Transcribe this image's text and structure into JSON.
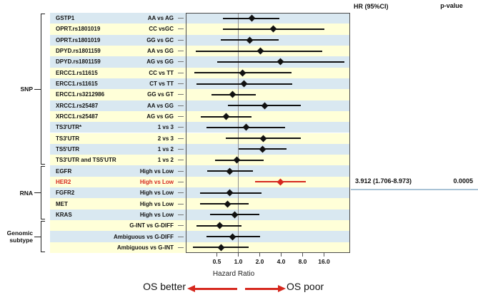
{
  "header": {
    "hr_ci": "HR (95%CI)",
    "p_value": "p-value"
  },
  "highlight_row": {
    "hr_ci_text": "3.912 (1.706-8.973)",
    "p_value_text": "0.0005"
  },
  "axis": {
    "label": "Hazard Ratio",
    "tick_labels": [
      "0.5",
      "1.0",
      "2.0",
      "4.0",
      "8.0",
      "16.0"
    ]
  },
  "footer": {
    "better": "OS better",
    "poor": "OS poor"
  },
  "groups": [
    {
      "label_lines": [
        "SNP"
      ],
      "row_start": 0,
      "row_end": 13
    },
    {
      "label_lines": [
        "RNA"
      ],
      "row_start": 14,
      "row_end": 18
    },
    {
      "label_lines": [
        "Genomic",
        "subtype"
      ],
      "row_start": 19,
      "row_end": 21
    }
  ],
  "colors": {
    "stripe_blue": "#d9e8f1",
    "stripe_yellow": "#ffffd8",
    "marker_black": "#111111",
    "highlight_red": "#d6281e",
    "reference_line": "#909090",
    "plot_border": "#4a4a4a",
    "divider_blue": "#a9c3d6"
  },
  "chart_data": {
    "type": "forest",
    "x_scale": "log2",
    "x_ticks": [
      0.5,
      1,
      2,
      4,
      8,
      16
    ],
    "reference_line": 1.0,
    "xlabel": "Hazard Ratio",
    "right_columns": {
      "hr_ci_header": "HR (95%CI)",
      "p_value_header": "p-value"
    },
    "direction_annotations": {
      "left": "OS better",
      "right": "OS poor"
    },
    "rows": [
      {
        "group": "SNP",
        "name": "GSTP1",
        "comparison": "AA vs AG",
        "hr": 1.54,
        "ci_low": 0.61,
        "ci_high": 3.79,
        "highlight": false
      },
      {
        "group": "SNP",
        "name": "OPRT.rs1801019",
        "comparison": "CC vsGC",
        "hr": 3.1,
        "ci_low": 0.61,
        "ci_high": 16.2,
        "highlight": false
      },
      {
        "group": "SNP",
        "name": "OPRT.rs1801019",
        "comparison": "GG vs GC",
        "hr": 1.44,
        "ci_low": 0.57,
        "ci_high": 3.7,
        "highlight": false
      },
      {
        "group": "SNP",
        "name": "DPYD.rs1801159",
        "comparison": "AA vs GG",
        "hr": 2.03,
        "ci_low": 0.25,
        "ci_high": 15.2,
        "highlight": false
      },
      {
        "group": "SNP",
        "name": "DPYD.rs1801159",
        "comparison": "AG vs GG",
        "hr": 3.9,
        "ci_low": 0.5,
        "ci_high": 31.0,
        "highlight": false
      },
      {
        "group": "SNP",
        "name": "ERCC1.rs11615",
        "comparison": "CC vs TT",
        "hr": 1.14,
        "ci_low": 0.24,
        "ci_high": 5.57,
        "highlight": false
      },
      {
        "group": "SNP",
        "name": "ERCC1.rs11615",
        "comparison": "CT vs TT",
        "hr": 1.21,
        "ci_low": 0.26,
        "ci_high": 5.7,
        "highlight": false
      },
      {
        "group": "SNP",
        "name": "ERCC1.rs3212986",
        "comparison": "GG vs GT",
        "hr": 0.84,
        "ci_low": 0.42,
        "ci_high": 1.78,
        "highlight": false
      },
      {
        "group": "SNP",
        "name": "XRCC1.rs25487",
        "comparison": "AA vs GG",
        "hr": 2.37,
        "ci_low": 0.72,
        "ci_high": 7.52,
        "highlight": false
      },
      {
        "group": "SNP",
        "name": "XRCC1.rs25487",
        "comparison": "AG vs GG",
        "hr": 0.68,
        "ci_low": 0.3,
        "ci_high": 1.53,
        "highlight": false
      },
      {
        "group": "SNP",
        "name": "TS3'UTR*",
        "comparison": "1 vs 3",
        "hr": 1.28,
        "ci_low": 0.36,
        "ci_high": 4.49,
        "highlight": false
      },
      {
        "group": "SNP",
        "name": "TS3'UTR",
        "comparison": "2 vs 3",
        "hr": 2.26,
        "ci_low": 0.66,
        "ci_high": 7.52,
        "highlight": false
      },
      {
        "group": "SNP",
        "name": "TS5'UTR",
        "comparison": "1 vs 2",
        "hr": 2.19,
        "ci_low": 1.02,
        "ci_high": 4.78,
        "highlight": false
      },
      {
        "group": "SNP",
        "name": "TS3'UTR and TS5'UTR",
        "comparison": "1 vs 2",
        "hr": 0.96,
        "ci_low": 0.47,
        "ci_high": 2.25,
        "highlight": false
      },
      {
        "group": "RNA",
        "name": "EGFR",
        "comparison": "High vs Low",
        "hr": 0.76,
        "ci_low": 0.37,
        "ci_high": 1.59,
        "highlight": false
      },
      {
        "group": "RNA",
        "name": "HER2",
        "comparison": "High vs Low",
        "hr": 3.912,
        "ci_low": 1.706,
        "ci_high": 8.973,
        "highlight": true,
        "hr_ci_text": "3.912 (1.706-8.973)",
        "p_value": "0.0005"
      },
      {
        "group": "RNA",
        "name": "FGFR2",
        "comparison": "High vs Low",
        "hr": 0.76,
        "ci_low": 0.29,
        "ci_high": 2.11,
        "highlight": false
      },
      {
        "group": "RNA",
        "name": "MET",
        "comparison": "High vs Low",
        "hr": 0.7,
        "ci_low": 0.29,
        "ci_high": 1.39,
        "highlight": false
      },
      {
        "group": "RNA",
        "name": "KRAS",
        "comparison": "High vs Low",
        "hr": 0.89,
        "ci_low": 0.4,
        "ci_high": 1.96,
        "highlight": false
      },
      {
        "group": "Genomic subtype",
        "name": "",
        "comparison": "G-INT vs G-DIFF",
        "hr": 0.55,
        "ci_low": 0.26,
        "ci_high": 1.11,
        "highlight": false
      },
      {
        "group": "Genomic subtype",
        "name": "",
        "comparison": "Ambiguous vs G-DIFF",
        "hr": 0.84,
        "ci_low": 0.36,
        "ci_high": 2.03,
        "highlight": false
      },
      {
        "group": "Genomic subtype",
        "name": "",
        "comparison": "Ambiguous vs G-INT",
        "hr": 0.57,
        "ci_low": 0.23,
        "ci_high": 1.41,
        "highlight": false
      }
    ]
  }
}
